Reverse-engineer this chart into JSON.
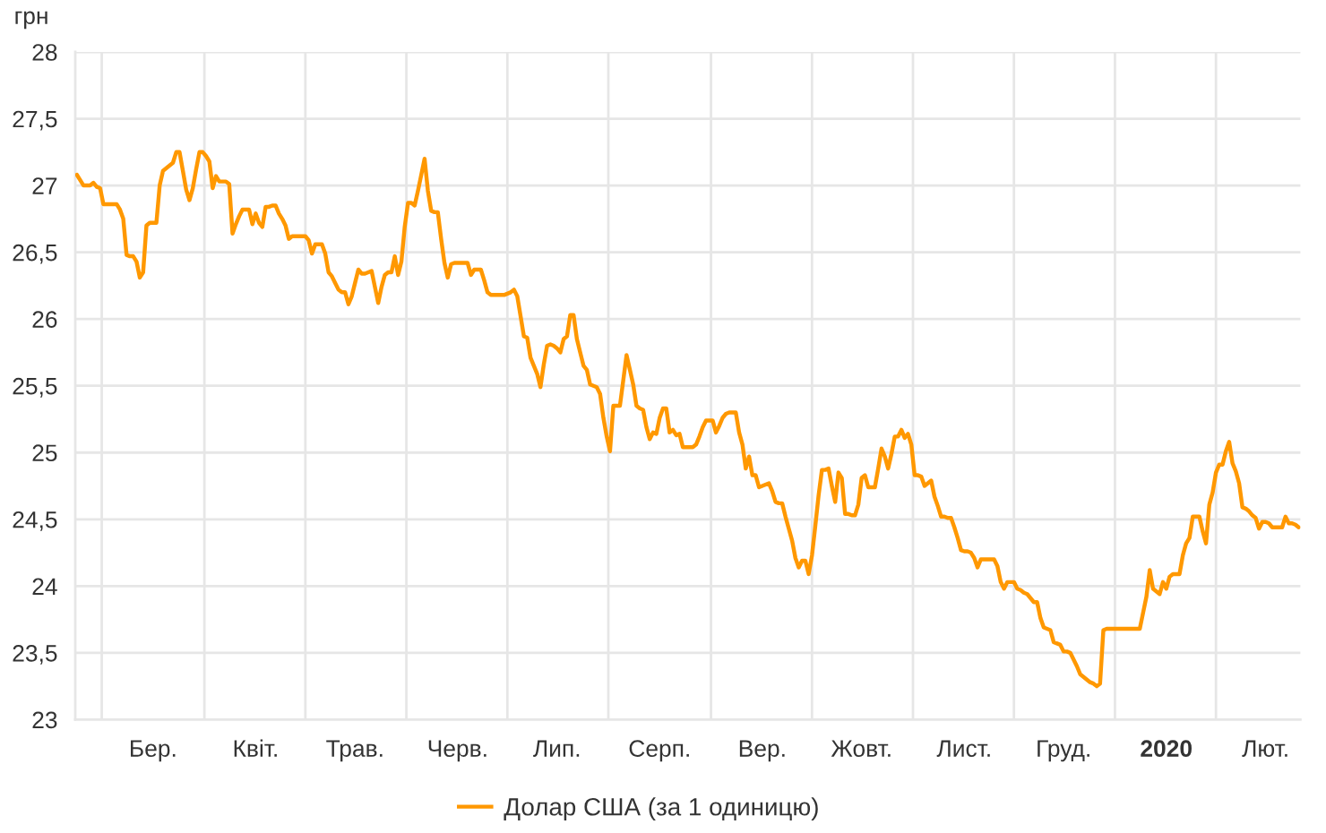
{
  "chart_data": {
    "type": "line",
    "ylabel": "грн",
    "categories": [
      null,
      null,
      null,
      null,
      null,
      null,
      null,
      null,
      null,
      null,
      null,
      null,
      null,
      null,
      null,
      null,
      null,
      null,
      null,
      null,
      null,
      null,
      null,
      "Бер.",
      null,
      null,
      null,
      null,
      null,
      null,
      null,
      null,
      null,
      null,
      null,
      null,
      null,
      null,
      null,
      null,
      null,
      null,
      null,
      null,
      null,
      null,
      null,
      null,
      null,
      null,
      null,
      null,
      null,
      null,
      "Квіт.",
      null,
      null,
      null,
      null,
      null,
      null,
      null,
      null,
      null,
      null,
      null,
      null,
      null,
      null,
      null,
      null,
      null,
      null,
      null,
      null,
      null,
      null,
      null,
      null,
      null,
      null,
      null,
      null,
      null,
      "Трав.",
      null,
      null,
      null,
      null,
      null,
      null,
      null,
      null,
      null,
      null,
      null,
      null,
      null,
      null,
      null,
      null,
      null,
      null,
      null,
      null,
      null,
      null,
      null,
      null,
      null,
      null,
      null,
      null,
      null,
      null,
      "Черв.",
      null,
      null,
      null,
      null,
      null,
      null,
      null,
      null,
      null,
      null,
      null,
      null,
      null,
      null,
      null,
      null,
      null,
      null,
      null,
      null,
      null,
      null,
      null,
      null,
      null,
      null,
      null,
      null,
      null,
      "Лип.",
      null,
      null,
      null,
      null,
      null,
      null,
      null,
      null,
      null,
      null,
      null,
      null,
      null,
      null,
      null,
      null,
      null,
      null,
      null,
      null,
      null,
      null,
      null,
      null,
      null,
      null,
      null,
      null,
      null,
      null,
      "Серп.",
      null,
      null,
      null,
      null,
      null,
      null,
      null,
      null,
      null,
      null,
      null,
      null,
      null,
      null,
      null,
      null,
      null,
      null,
      null,
      null,
      null,
      null,
      null,
      null,
      null,
      null,
      null,
      null,
      null,
      null,
      "Вер.",
      null,
      null,
      null,
      null,
      null,
      null,
      null,
      null,
      null,
      null,
      null,
      null,
      null,
      null,
      null,
      null,
      null,
      null,
      null,
      null,
      null,
      null,
      null,
      null,
      null,
      null,
      null,
      null,
      null,
      "Жовт.",
      null,
      null,
      null,
      null,
      null,
      null,
      null,
      null,
      null,
      null,
      null,
      null,
      null,
      null,
      null,
      null,
      null,
      null,
      null,
      null,
      null,
      null,
      null,
      null,
      null,
      null,
      null,
      null,
      null,
      null,
      "Лист.",
      null,
      null,
      null,
      null,
      null,
      null,
      null,
      null,
      null,
      null,
      null,
      null,
      null,
      null,
      null,
      null,
      null,
      null,
      null,
      null,
      null,
      null,
      null,
      null,
      null,
      null,
      null,
      null,
      null,
      "Груд.",
      null,
      null,
      null,
      null,
      null,
      null,
      null,
      null,
      null,
      null,
      null,
      null,
      null,
      null,
      null,
      null,
      null,
      null,
      null,
      null,
      null,
      null,
      null,
      null,
      null,
      null,
      null,
      null,
      null,
      null,
      "2020",
      null,
      null,
      null,
      null,
      null,
      null,
      null,
      null,
      null,
      null,
      null,
      null,
      null,
      null,
      null,
      null,
      null,
      null,
      null,
      null,
      null,
      null,
      null,
      null,
      null,
      null,
      null,
      null,
      null,
      "Лют.",
      null,
      null,
      null,
      null,
      null,
      null,
      null,
      null,
      null,
      null
    ],
    "series": [
      {
        "name": "Долар США (за 1 одиницю)",
        "color": "#ff9800",
        "values": [
          27.08,
          27.04,
          27.0,
          27.0,
          27.0,
          27.02,
          26.99,
          26.98,
          26.86,
          26.86,
          26.86,
          26.86,
          26.86,
          26.82,
          26.75,
          26.48,
          26.47,
          26.47,
          26.43,
          26.31,
          26.35,
          26.7,
          26.72,
          26.72,
          26.72,
          27.0,
          27.11,
          27.13,
          27.15,
          27.17,
          27.25,
          27.25,
          27.11,
          26.97,
          26.89,
          26.98,
          27.12,
          27.25,
          27.25,
          27.22,
          27.18,
          26.98,
          27.07,
          27.03,
          27.03,
          27.03,
          27.01,
          26.64,
          26.71,
          26.77,
          26.82,
          26.82,
          26.82,
          26.71,
          26.79,
          26.72,
          26.69,
          26.84,
          26.84,
          26.85,
          26.85,
          26.79,
          26.75,
          26.7,
          26.6,
          26.62,
          26.62,
          26.62,
          26.62,
          26.62,
          26.59,
          26.49,
          26.56,
          26.56,
          26.56,
          26.49,
          26.35,
          26.32,
          26.27,
          26.22,
          26.2,
          26.2,
          26.11,
          26.17,
          26.27,
          26.37,
          26.34,
          26.34,
          26.35,
          26.36,
          26.24,
          26.12,
          26.24,
          26.33,
          26.35,
          26.35,
          26.47,
          26.33,
          26.43,
          26.69,
          26.87,
          26.87,
          26.85,
          26.96,
          27.08,
          27.2,
          26.96,
          26.81,
          26.8,
          26.8,
          26.6,
          26.42,
          26.31,
          26.41,
          26.42,
          26.42,
          26.42,
          26.42,
          26.42,
          26.33,
          26.37,
          26.37,
          26.37,
          26.29,
          26.2,
          26.18,
          26.18,
          26.18,
          26.18,
          26.18,
          26.19,
          26.2,
          26.22,
          26.17,
          26.02,
          25.87,
          25.86,
          25.71,
          25.65,
          25.59,
          25.49,
          25.66,
          25.8,
          25.81,
          25.8,
          25.78,
          25.75,
          25.85,
          25.87,
          26.03,
          26.03,
          25.85,
          25.75,
          25.65,
          25.62,
          25.51,
          25.5,
          25.49,
          25.44,
          25.26,
          25.12,
          25.01,
          25.35,
          25.35,
          25.35,
          25.54,
          25.73,
          25.62,
          25.51,
          25.35,
          25.33,
          25.32,
          25.19,
          25.1,
          25.15,
          25.14,
          25.26,
          25.33,
          25.33,
          25.15,
          25.17,
          25.13,
          25.14,
          25.04,
          25.04,
          25.04,
          25.04,
          25.06,
          25.12,
          25.19,
          25.24,
          25.24,
          25.24,
          25.15,
          25.2,
          25.26,
          25.29,
          25.3,
          25.3,
          25.3,
          25.15,
          25.06,
          24.88,
          24.97,
          24.83,
          24.83,
          24.74,
          24.75,
          24.76,
          24.77,
          24.71,
          24.63,
          24.62,
          24.62,
          24.52,
          24.43,
          24.34,
          24.21,
          24.14,
          24.19,
          24.19,
          24.09,
          24.23,
          24.45,
          24.68,
          24.87,
          24.87,
          24.88,
          24.75,
          24.63,
          24.85,
          24.81,
          24.54,
          24.54,
          24.53,
          24.53,
          24.61,
          24.81,
          24.83,
          24.74,
          24.74,
          24.74,
          24.88,
          25.03,
          24.97,
          24.88,
          24.99,
          25.12,
          25.12,
          25.17,
          25.11,
          25.14,
          25.06,
          24.83,
          24.83,
          24.82,
          24.75,
          24.77,
          24.79,
          24.67,
          24.6,
          24.52,
          24.52,
          24.51,
          24.51,
          24.44,
          24.36,
          24.27,
          24.26,
          24.26,
          24.25,
          24.21,
          24.14,
          24.2,
          24.2,
          24.2,
          24.2,
          24.2,
          24.15,
          24.03,
          23.98,
          24.03,
          24.03,
          24.03,
          23.98,
          23.97,
          23.95,
          23.94,
          23.91,
          23.88,
          23.88,
          23.76,
          23.69,
          23.68,
          23.67,
          23.58,
          23.57,
          23.56,
          23.51,
          23.51,
          23.5,
          23.45,
          23.4,
          23.34,
          23.32,
          23.3,
          23.28,
          23.27,
          23.25,
          23.27,
          23.67,
          23.68,
          23.68,
          23.68,
          23.68,
          23.68,
          23.68,
          23.68,
          23.68,
          23.68,
          23.68,
          23.68,
          23.8,
          23.92,
          24.12,
          23.98,
          23.96,
          23.94,
          24.03,
          23.98,
          24.07,
          24.09,
          24.09,
          24.09,
          24.23,
          24.32,
          24.36,
          24.52,
          24.52,
          24.52,
          24.41,
          24.32,
          24.61,
          24.7,
          24.85,
          24.91,
          24.91,
          25.01,
          25.08,
          24.92,
          24.86,
          24.77,
          24.59,
          24.58,
          24.56,
          24.53,
          24.51,
          24.43,
          24.48,
          24.48,
          24.47,
          24.44,
          24.44,
          24.44,
          24.44,
          24.52,
          24.47,
          24.47,
          24.46,
          24.44
        ]
      }
    ],
    "ylim": [
      23,
      28
    ],
    "yticks": [
      23,
      {
        "value": 23.5,
        "label": "23,5"
      },
      24,
      {
        "value": 24.5,
        "label": "24,5"
      },
      25,
      {
        "value": 25.5,
        "label": "25,5"
      },
      26,
      {
        "value": 26.5,
        "label": "26,5"
      },
      27,
      {
        "value": 27.5,
        "label": "27,5"
      },
      28
    ],
    "grid": true,
    "legend": "bottom"
  }
}
